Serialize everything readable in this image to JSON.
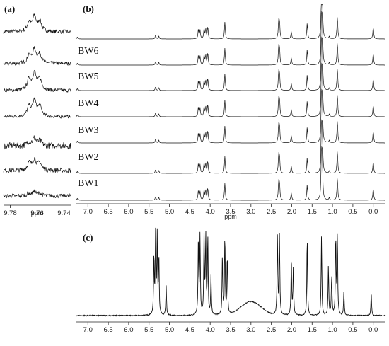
{
  "chart_data": [
    {
      "panel": "(a)",
      "type": "line",
      "xlabel": "ppm",
      "x_ticks": [
        "9.78",
        "9.76",
        "9.74"
      ],
      "x_tick_values": [
        9.78,
        9.76,
        9.74
      ],
      "x_range": [
        9.785,
        9.735
      ],
      "x_reversed": true,
      "series": [
        {
          "peaks": [
            [
              9.766,
              0.45
            ],
            [
              9.762,
              0.75
            ],
            [
              9.758,
              0.5
            ]
          ],
          "noise": 0.1
        },
        {
          "peaks": [
            [
              9.766,
              0.4
            ],
            [
              9.762,
              0.7
            ],
            [
              9.758,
              0.45
            ]
          ],
          "noise": 0.09
        },
        {
          "peaks": [
            [
              9.766,
              0.55
            ],
            [
              9.762,
              0.85
            ],
            [
              9.758,
              0.55
            ]
          ],
          "noise": 0.09
        },
        {
          "peaks": [
            [
              9.766,
              0.5
            ],
            [
              9.762,
              0.8
            ],
            [
              9.758,
              0.5
            ]
          ],
          "noise": 0.08
        },
        {
          "peaks": [
            [
              9.766,
              0.2
            ],
            [
              9.762,
              0.35
            ],
            [
              9.758,
              0.2
            ]
          ],
          "noise": 0.16
        },
        {
          "peaks": [
            [
              9.766,
              0.35
            ],
            [
              9.762,
              0.55
            ],
            [
              9.758,
              0.35
            ]
          ],
          "noise": 0.12
        },
        {
          "peaks": [
            [
              9.766,
              0.12
            ],
            [
              9.762,
              0.2
            ],
            [
              9.758,
              0.12
            ]
          ],
          "noise": 0.1
        }
      ]
    },
    {
      "panel": "(b)",
      "type": "line",
      "xlabel": "ppm",
      "x_ticks": [
        "7.0",
        "6.5",
        "6.0",
        "5.5",
        "5.0",
        "4.5",
        "4.0",
        "3.5",
        "3.0",
        "2.5",
        "2.0",
        "1.5",
        "1.0",
        "0.5",
        "0.0"
      ],
      "x_tick_values": [
        7.0,
        6.5,
        6.0,
        5.5,
        5.0,
        4.5,
        4.0,
        3.5,
        3.0,
        2.5,
        2.0,
        1.5,
        1.0,
        0.5,
        0.0
      ],
      "x_range": [
        7.3,
        -0.3
      ],
      "x_reversed": true,
      "labels": [
        "BW6",
        "BW5",
        "BW4",
        "BW3",
        "BW2",
        "BW1"
      ],
      "peaks": [
        [
          7.26,
          0.25
        ],
        [
          5.34,
          0.5
        ],
        [
          5.26,
          0.35
        ],
        [
          4.29,
          1.2
        ],
        [
          4.25,
          1.1
        ],
        [
          4.15,
          1.3
        ],
        [
          4.11,
          1.2
        ],
        [
          4.06,
          1.6
        ],
        [
          3.64,
          2.2
        ],
        [
          2.32,
          2.2
        ],
        [
          2.3,
          2.0
        ],
        [
          2.01,
          1.0
        ],
        [
          1.62,
          2.0
        ],
        [
          1.27,
          6.0
        ],
        [
          1.25,
          5.0
        ],
        [
          1.08,
          0.3
        ],
        [
          0.88,
          3.0
        ],
        [
          0.0,
          1.6
        ]
      ]
    },
    {
      "panel": "(c)",
      "type": "line",
      "x_ticks": [
        "7.0",
        "6.5",
        "6.0",
        "5.5",
        "5.0",
        "4.5",
        "4.0",
        "3.5",
        "3.0",
        "2.5",
        "2.0",
        "1.5",
        "1.0",
        "0.5",
        "0.0"
      ],
      "x_tick_values": [
        7.0,
        6.5,
        6.0,
        5.5,
        5.0,
        4.5,
        4.0,
        3.5,
        3.0,
        2.5,
        2.0,
        1.5,
        1.0,
        0.5,
        0.0
      ],
      "x_range": [
        7.3,
        -0.3
      ],
      "x_reversed": true,
      "peaks": [
        [
          5.38,
          3
        ],
        [
          5.34,
          4
        ],
        [
          5.3,
          4
        ],
        [
          5.26,
          3
        ],
        [
          5.08,
          1.5
        ],
        [
          4.29,
          4
        ],
        [
          4.25,
          4
        ],
        [
          4.15,
          4
        ],
        [
          4.11,
          4
        ],
        [
          4.06,
          4
        ],
        [
          3.98,
          2
        ],
        [
          3.7,
          3
        ],
        [
          3.64,
          4
        ],
        [
          3.58,
          3
        ],
        [
          2.35,
          4
        ],
        [
          2.3,
          4
        ],
        [
          2.01,
          3
        ],
        [
          1.96,
          2.5
        ],
        [
          1.62,
          4
        ],
        [
          1.27,
          4
        ],
        [
          1.1,
          2.5
        ],
        [
          1.02,
          2.0
        ],
        [
          0.92,
          4
        ],
        [
          0.88,
          4
        ],
        [
          0.72,
          1.2
        ],
        [
          0.05,
          1.2
        ]
      ]
    }
  ]
}
